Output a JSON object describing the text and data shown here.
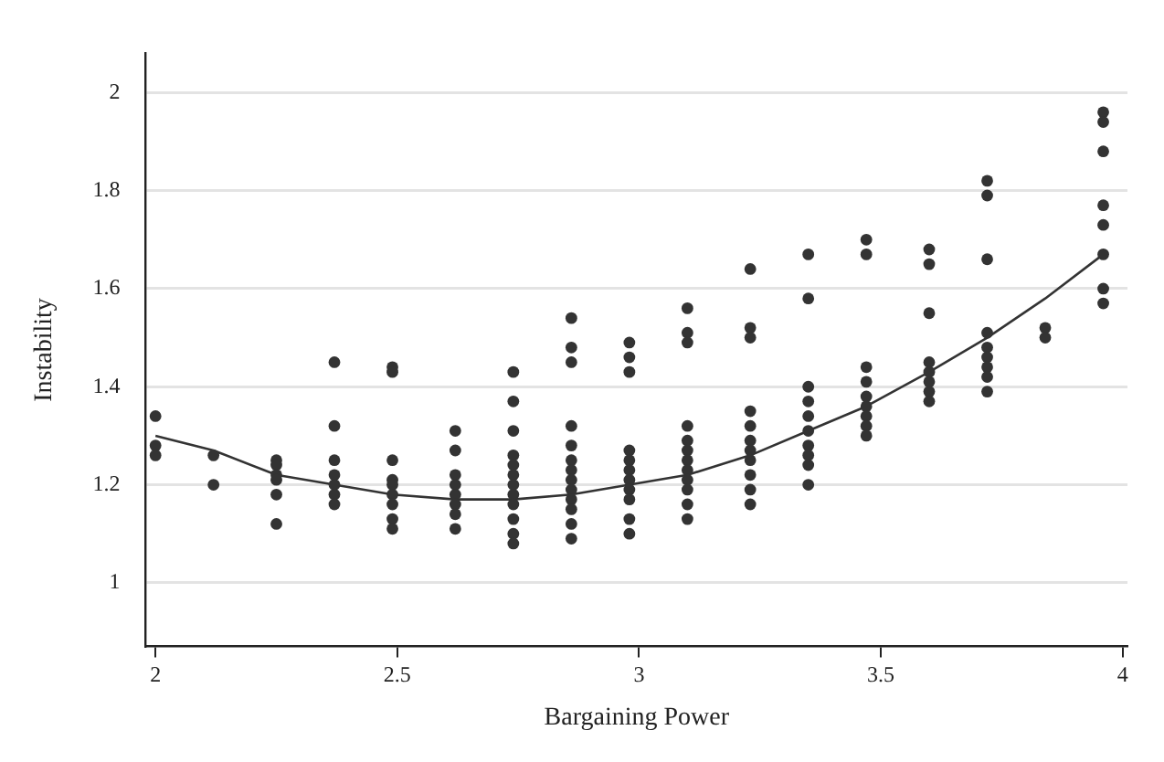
{
  "chart_data": {
    "type": "scatter",
    "xlabel": "Bargaining Power",
    "ylabel": "Instability",
    "xlim": [
      1.98,
      4.01
    ],
    "ylim": [
      0.87,
      2.08
    ],
    "xticks": [
      2,
      2.5,
      3,
      3.5,
      4
    ],
    "yticks": [
      1,
      1.2,
      1.4,
      1.6,
      1.8,
      2
    ],
    "grid": "y",
    "marker": "circle",
    "series": [
      {
        "type": "scatter",
        "color": "#333333",
        "x": [
          2,
          2,
          2,
          2.12,
          2.12,
          2.25,
          2.25,
          2.25,
          2.25,
          2.25,
          2.25,
          2.37,
          2.37,
          2.37,
          2.37,
          2.37,
          2.37,
          2.37,
          2.49,
          2.49,
          2.49,
          2.49,
          2.49,
          2.49,
          2.49,
          2.49,
          2.49,
          2.62,
          2.62,
          2.62,
          2.62,
          2.62,
          2.62,
          2.62,
          2.62,
          2.74,
          2.74,
          2.74,
          2.74,
          2.74,
          2.74,
          2.74,
          2.74,
          2.74,
          2.74,
          2.74,
          2.74,
          2.86,
          2.86,
          2.86,
          2.86,
          2.86,
          2.86,
          2.86,
          2.86,
          2.86,
          2.86,
          2.86,
          2.86,
          2.86,
          2.98,
          2.98,
          2.98,
          2.98,
          2.98,
          2.98,
          2.98,
          2.98,
          2.98,
          2.98,
          2.98,
          3.1,
          3.1,
          3.1,
          3.1,
          3.1,
          3.1,
          3.1,
          3.1,
          3.1,
          3.1,
          3.1,
          3.1,
          3.23,
          3.23,
          3.23,
          3.23,
          3.23,
          3.23,
          3.23,
          3.23,
          3.23,
          3.23,
          3.23,
          3.35,
          3.35,
          3.35,
          3.35,
          3.35,
          3.35,
          3.35,
          3.35,
          3.35,
          3.35,
          3.47,
          3.47,
          3.47,
          3.47,
          3.47,
          3.47,
          3.47,
          3.47,
          3.47,
          3.6,
          3.6,
          3.6,
          3.6,
          3.6,
          3.6,
          3.6,
          3.6,
          3.72,
          3.72,
          3.72,
          3.72,
          3.72,
          3.72,
          3.72,
          3.72,
          3.72,
          3.84,
          3.84,
          3.96,
          3.96,
          3.96,
          3.96,
          3.96,
          3.96,
          3.96,
          3.96
        ],
        "values": [
          1.34,
          1.28,
          1.26,
          1.26,
          1.2,
          1.25,
          1.24,
          1.22,
          1.21,
          1.18,
          1.12,
          1.45,
          1.32,
          1.25,
          1.22,
          1.2,
          1.18,
          1.16,
          1.44,
          1.43,
          1.25,
          1.21,
          1.2,
          1.18,
          1.16,
          1.13,
          1.11,
          1.31,
          1.27,
          1.22,
          1.2,
          1.18,
          1.16,
          1.14,
          1.11,
          1.43,
          1.37,
          1.31,
          1.26,
          1.24,
          1.22,
          1.2,
          1.18,
          1.16,
          1.13,
          1.1,
          1.08,
          1.54,
          1.48,
          1.45,
          1.32,
          1.28,
          1.25,
          1.23,
          1.21,
          1.19,
          1.17,
          1.15,
          1.12,
          1.09,
          1.49,
          1.46,
          1.43,
          1.27,
          1.25,
          1.23,
          1.21,
          1.19,
          1.17,
          1.13,
          1.1,
          1.56,
          1.51,
          1.49,
          1.32,
          1.29,
          1.27,
          1.25,
          1.23,
          1.21,
          1.19,
          1.16,
          1.13,
          1.64,
          1.52,
          1.5,
          1.35,
          1.32,
          1.29,
          1.27,
          1.25,
          1.22,
          1.19,
          1.16,
          1.67,
          1.58,
          1.4,
          1.37,
          1.34,
          1.31,
          1.28,
          1.26,
          1.24,
          1.2,
          1.7,
          1.67,
          1.44,
          1.41,
          1.38,
          1.36,
          1.34,
          1.32,
          1.3,
          1.68,
          1.65,
          1.55,
          1.45,
          1.43,
          1.41,
          1.39,
          1.37,
          1.82,
          1.79,
          1.66,
          1.51,
          1.48,
          1.46,
          1.44,
          1.42,
          1.39,
          1.52,
          1.5,
          1.96,
          1.94,
          1.88,
          1.77,
          1.73,
          1.67,
          1.6,
          1.57
        ]
      },
      {
        "type": "line",
        "color": "#333333",
        "marker": "none",
        "line_style": "solid",
        "x": [
          2,
          2.12,
          2.25,
          2.37,
          2.49,
          2.62,
          2.74,
          2.86,
          2.98,
          3.1,
          3.23,
          3.35,
          3.47,
          3.6,
          3.72,
          3.84,
          3.96
        ],
        "values": [
          1.3,
          1.27,
          1.22,
          1.2,
          1.18,
          1.17,
          1.17,
          1.18,
          1.2,
          1.22,
          1.26,
          1.31,
          1.36,
          1.43,
          1.5,
          1.58,
          1.67
        ]
      }
    ]
  }
}
